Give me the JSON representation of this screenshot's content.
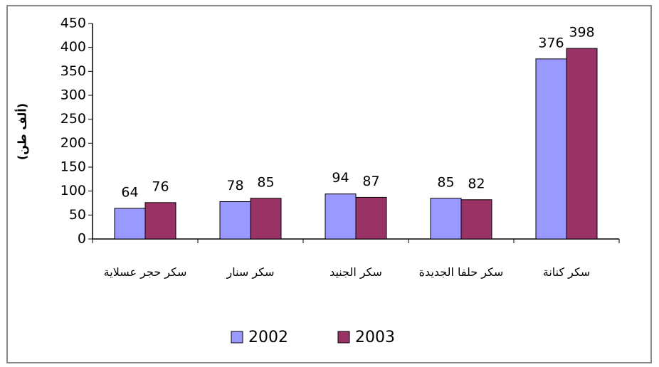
{
  "chart_data": {
    "type": "bar",
    "y_label": "(ألف طن)",
    "categories": [
      "سكر حجر عسلاية",
      "سكر سنار",
      "سكر الجنيد",
      "سكر حلفا الجديدة",
      "سكر كنانة"
    ],
    "series": [
      {
        "name": "2002",
        "color": "#9999ff",
        "values": [
          64,
          78,
          94,
          85,
          376
        ]
      },
      {
        "name": "2003",
        "color": "#993366",
        "values": [
          76,
          85,
          87,
          82,
          398
        ]
      }
    ],
    "ylim": [
      0,
      450
    ],
    "yticks": [
      0,
      50,
      100,
      150,
      200,
      250,
      300,
      350,
      400,
      450
    ],
    "grid": false,
    "legend": "bottom"
  }
}
